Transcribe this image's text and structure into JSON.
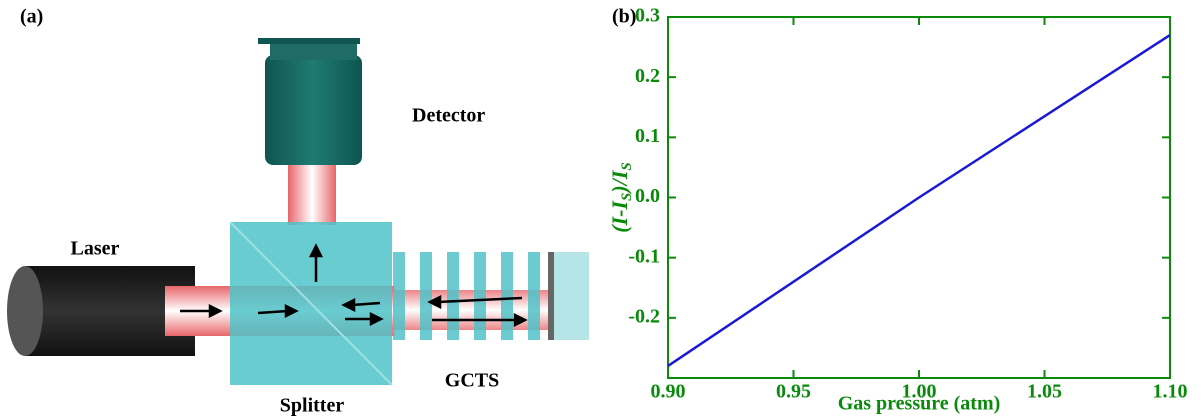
{
  "diagram": {
    "panel_label": "(a)",
    "laser": "Laser",
    "detector": "Detector",
    "splitter": "Splitter",
    "gcts": "GCTS"
  },
  "chart_data": {
    "type": "line",
    "panel_label": "(b)",
    "x_label": "Gas pressure (atm)",
    "y_label_parts": [
      "(I-I",
      "S",
      ")/I",
      "S"
    ],
    "x": [
      0.9,
      1.0,
      1.1
    ],
    "series": [
      {
        "color": "#1a1ad6",
        "values": [
          -0.28,
          0.0,
          0.27
        ]
      }
    ],
    "xlim": [
      0.9,
      1.1
    ],
    "ylim": [
      -0.3,
      0.3
    ],
    "xticks": [
      {
        "value": 0.9,
        "label": "0.90"
      },
      {
        "value": 0.95,
        "label": "0.95"
      },
      {
        "value": 1.0,
        "label": "1.00"
      },
      {
        "value": 1.05,
        "label": "1.05"
      },
      {
        "value": 1.1,
        "label": "1.10"
      }
    ],
    "yticks": [
      -0.2,
      -0.1,
      {
        "value": 0,
        "label": "0.0"
      },
      0.1,
      0.2,
      0.3
    ],
    "axis_color": "#0a8a0a"
  }
}
